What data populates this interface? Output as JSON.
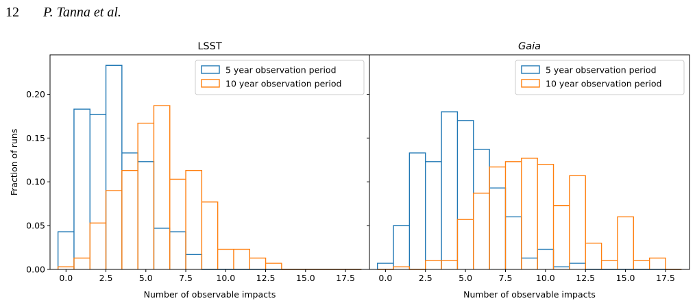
{
  "header": {
    "page_number": "12",
    "authors": "P. Tanna et al."
  },
  "colors": {
    "five_year": "#1f77b4",
    "ten_year": "#ff7f0e",
    "axes": "#000000"
  },
  "chart_data": [
    {
      "type": "histogram",
      "title": "LSST",
      "title_style": "normal",
      "xlabel": "Number of observable impacts",
      "ylabel": "Fraction of runs",
      "xlim": [
        -1,
        19
      ],
      "ylim": [
        0,
        0.245
      ],
      "xticks": [
        0.0,
        2.5,
        5.0,
        7.5,
        10.0,
        12.5,
        15.0,
        17.5
      ],
      "xtick_labels": [
        "0.0",
        "2.5",
        "5.0",
        "7.5",
        "10.0",
        "12.5",
        "15.0",
        "17.5"
      ],
      "yticks": [
        0.0,
        0.05,
        0.1,
        0.15,
        0.2
      ],
      "ytick_labels": [
        "0.00",
        "0.05",
        "0.10",
        "0.15",
        "0.20"
      ],
      "legend_position": "top-right",
      "series": [
        {
          "name": "5 year observation period",
          "color_key": "five_year",
          "bin_start": -0.5,
          "bin_width": 1,
          "values": [
            0.043,
            0.183,
            0.177,
            0.233,
            0.133,
            0.123,
            0.047,
            0.043,
            0.017,
            0,
            0,
            0,
            0,
            0,
            0,
            0,
            0,
            0,
            0
          ]
        },
        {
          "name": "10 year observation period",
          "color_key": "ten_year",
          "bin_start": -0.5,
          "bin_width": 1,
          "values": [
            0.003,
            0.013,
            0.053,
            0.09,
            0.113,
            0.167,
            0.187,
            0.103,
            0.113,
            0.077,
            0.023,
            0.023,
            0.013,
            0.007,
            0,
            0,
            0,
            0,
            0
          ]
        }
      ]
    },
    {
      "type": "histogram",
      "title": "Gaia",
      "title_style": "italic",
      "xlabel": "Number of observable impacts",
      "ylabel": "",
      "xlim": [
        -1,
        19
      ],
      "ylim": [
        0,
        0.245
      ],
      "xticks": [
        0.0,
        2.5,
        5.0,
        7.5,
        10.0,
        12.5,
        15.0,
        17.5
      ],
      "xtick_labels": [
        "0.0",
        "2.5",
        "5.0",
        "7.5",
        "10.0",
        "12.5",
        "15.0",
        "17.5"
      ],
      "yticks": [
        0.0,
        0.05,
        0.1,
        0.15,
        0.2
      ],
      "ytick_labels": [],
      "legend_position": "top-right",
      "series": [
        {
          "name": "5 year observation period",
          "color_key": "five_year",
          "bin_start": -0.5,
          "bin_width": 1,
          "values": [
            0.007,
            0.05,
            0.133,
            0.123,
            0.18,
            0.17,
            0.137,
            0.093,
            0.06,
            0.013,
            0.023,
            0.003,
            0.007,
            0,
            0,
            0,
            0,
            0,
            0
          ]
        },
        {
          "name": "10 year observation period",
          "color_key": "ten_year",
          "bin_start": -0.5,
          "bin_width": 1,
          "values": [
            0,
            0.003,
            0,
            0.01,
            0.01,
            0.057,
            0.087,
            0.117,
            0.123,
            0.127,
            0.12,
            0.073,
            0.107,
            0.03,
            0.01,
            0.06,
            0.01,
            0.013,
            0
          ]
        }
      ]
    }
  ]
}
